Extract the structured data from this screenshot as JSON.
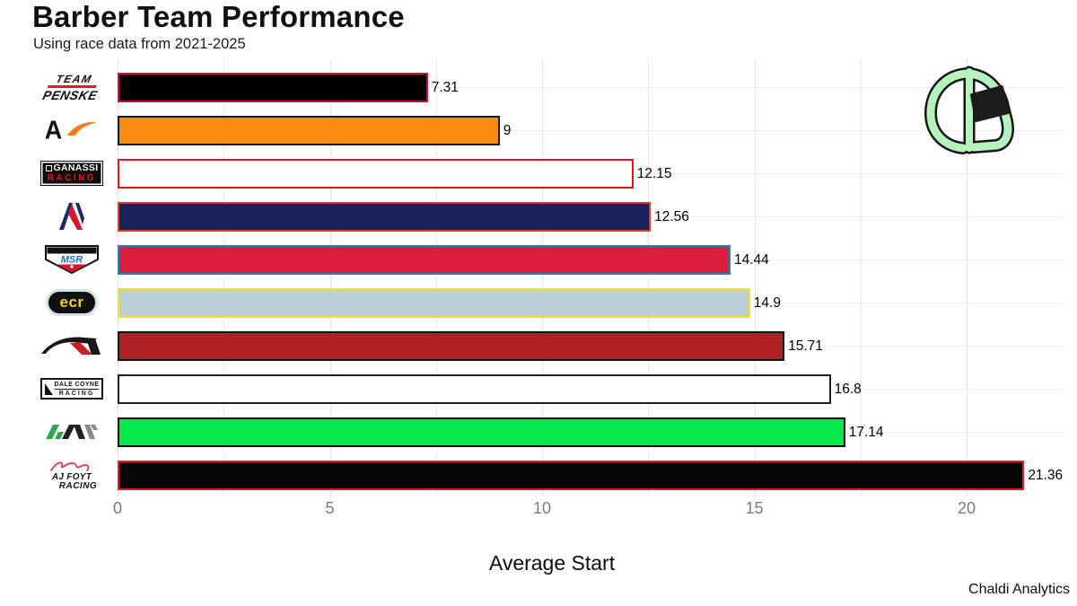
{
  "header": {
    "title": "Barber Team Performance",
    "subtitle": "Using race data from 2021-2025"
  },
  "branding": {
    "watermark": "Chaldi Analytics",
    "logo_icon": "helmet-icon"
  },
  "axis": {
    "xlabel": "Average Start",
    "xticks": [
      "0",
      "5",
      "10",
      "15",
      "20"
    ]
  },
  "chart_data": {
    "type": "bar",
    "orientation": "horizontal",
    "title": "Barber Team Performance",
    "subtitle": "Using race data from 2021-2025",
    "xlabel": "Average Start",
    "xlim": [
      0,
      22.4
    ],
    "xticks": [
      0,
      5,
      10,
      15,
      20
    ],
    "grid": "light vertical gridlines every 2.5 units, light horizontal line per row",
    "legend": "none",
    "categories": [
      "Team Penske",
      "Arrow McLaren",
      "Chip Ganassi Racing",
      "Andretti Global",
      "Meyer Shank Racing",
      "Ed Carpenter Racing",
      "Rahal Letterman Lanigan Racing",
      "Dale Coyne Racing",
      "Juncos Hollinger Racing",
      "AJ Foyt Racing"
    ],
    "values": [
      7.31,
      9,
      12.15,
      12.56,
      14.44,
      14.9,
      15.71,
      16.8,
      17.14,
      21.36
    ],
    "value_labels": [
      "7.31",
      "9",
      "12.15",
      "12.56",
      "14.44",
      "14.9",
      "15.71",
      "16.8",
      "17.14",
      "21.36"
    ],
    "teams": [
      {
        "name": "Team Penske",
        "logo": "penske",
        "logo_text": [
          "TEAM",
          "PENSKE"
        ],
        "value": 7.31,
        "label": "7.31",
        "fill": "#000000",
        "border": "#d0103a"
      },
      {
        "name": "Arrow McLaren",
        "logo": "mclaren",
        "logo_text": [
          "A"
        ],
        "value": 9,
        "label": "9",
        "fill": "#f88c12",
        "border": "#1a1a1a"
      },
      {
        "name": "Chip Ganassi Racing",
        "logo": "ganassi",
        "logo_text": [
          "GANASSI",
          "RACING"
        ],
        "value": 12.15,
        "label": "12.15",
        "fill": "#ffffff",
        "border": "#e8141c"
      },
      {
        "name": "Andretti Global",
        "logo": "andretti",
        "logo_text": [],
        "value": 12.56,
        "label": "12.56",
        "fill": "#152358",
        "border": "#e0392c"
      },
      {
        "name": "Meyer Shank Racing",
        "logo": "msr",
        "logo_text": [
          "MSR"
        ],
        "value": 14.44,
        "label": "14.44",
        "fill": "#dc1e3e",
        "border": "#2180c2"
      },
      {
        "name": "Ed Carpenter Racing",
        "logo": "ecr",
        "logo_text": [
          "ecr"
        ],
        "value": 14.9,
        "label": "14.9",
        "fill": "#bccfd6",
        "border": "#f2e126"
      },
      {
        "name": "Rahal Letterman Lanigan Racing",
        "logo": "rll",
        "logo_text": [],
        "value": 15.71,
        "label": "15.71",
        "fill": "#b02126",
        "border": "#141414"
      },
      {
        "name": "Dale Coyne Racing",
        "logo": "coyne",
        "logo_text": [
          "DALE COYNE",
          "RACING"
        ],
        "value": 16.8,
        "label": "16.8",
        "fill": "#ffffff",
        "border": "#202020"
      },
      {
        "name": "Juncos Hollinger Racing",
        "logo": "jhr",
        "logo_text": [],
        "value": 17.14,
        "label": "17.14",
        "fill": "#06e84c",
        "border": "#111111"
      },
      {
        "name": "AJ Foyt Racing",
        "logo": "foyt",
        "logo_text": [
          "AJ FOYT",
          "RACING"
        ],
        "value": 21.36,
        "label": "21.36",
        "fill": "#050505",
        "border": "#e51a30"
      }
    ]
  },
  "colors": {
    "grid": "#e9e9e9",
    "tick_text": "#7b7b7b",
    "helmet_green": "#b5f2bd",
    "background": "#ffffff"
  }
}
